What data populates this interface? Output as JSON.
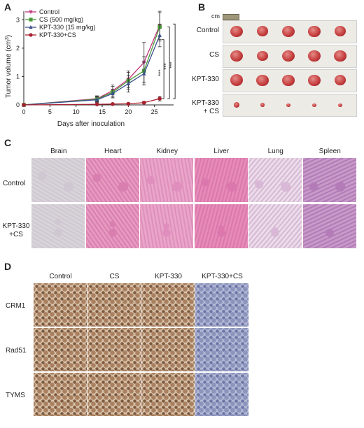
{
  "panels": {
    "a": "A",
    "b": "B",
    "c": "C",
    "d": "D"
  },
  "chart_data": {
    "type": "line",
    "xlabel": "Days after inoculation",
    "ylabel": "Tumor volume (cm³)",
    "ylabel_main": "Tumor volume (cm",
    "ylabel_sup": "3",
    "ylabel_end": ")",
    "xlim": [
      0,
      30
    ],
    "ylim": [
      0,
      3.5
    ],
    "xticks": [
      "0",
      "5",
      "10",
      "15",
      "20",
      "25"
    ],
    "yticks": [
      "0",
      "1",
      "2",
      "3"
    ],
    "x": [
      0,
      14,
      17,
      20,
      23,
      26
    ],
    "series": [
      {
        "name": "Control",
        "color": "#c2347a",
        "marker": "triangle-down",
        "values": [
          0,
          0.22,
          0.5,
          0.9,
          1.5,
          2.8
        ],
        "err": [
          0,
          0.1,
          0.2,
          0.3,
          0.7,
          0.5
        ]
      },
      {
        "name": "CS (500 mg/kg)",
        "color": "#4a9a3a",
        "marker": "square",
        "values": [
          0,
          0.2,
          0.45,
          0.85,
          1.2,
          2.75
        ],
        "err": [
          0,
          0.1,
          0.2,
          0.3,
          0.5,
          0.5
        ]
      },
      {
        "name": "KPT-330 (15 mg/kg)",
        "color": "#3a4e8c",
        "marker": "triangle-up",
        "values": [
          0,
          0.18,
          0.4,
          0.75,
          1.1,
          2.45
        ],
        "err": [
          0,
          0.1,
          0.15,
          0.3,
          0.4,
          0.4
        ]
      },
      {
        "name": "KPT-330+CS",
        "color": "#a8202e",
        "marker": "circle",
        "values": [
          0,
          0.02,
          0.03,
          0.04,
          0.08,
          0.22
        ],
        "err": [
          0,
          0.02,
          0.02,
          0.02,
          0.04,
          0.08
        ]
      }
    ],
    "significance": [
      "***",
      "***",
      "***"
    ]
  },
  "panel_b": {
    "scale_label": "cm",
    "rows": [
      {
        "label": "Control",
        "tumors": [
          1.0,
          0.9,
          1.0,
          0.95,
          0.9
        ]
      },
      {
        "label": "CS",
        "tumors": [
          1.0,
          0.85,
          1.0,
          0.95,
          0.95
        ]
      },
      {
        "label": "KPT-330",
        "tumors": [
          1.05,
          0.95,
          0.95,
          0.95,
          0.9
        ]
      },
      {
        "label_line1": "KPT-330",
        "label_line2": "+ CS",
        "tumors": [
          0.45,
          0.38,
          0.32,
          0.3,
          0.3
        ]
      }
    ]
  },
  "panel_c": {
    "columns": [
      "Brain",
      "Heart",
      "Kidney",
      "Liver",
      "Lung",
      "Spleen"
    ],
    "rows": [
      {
        "label": "Control"
      },
      {
        "label_line1": "KPT-330",
        "label_line2": "+CS"
      }
    ]
  },
  "panel_d": {
    "columns": [
      "Control",
      "CS",
      "KPT-330",
      "KPT-330+CS"
    ],
    "rows": [
      "CRM1",
      "Rad51",
      "TYMS"
    ]
  },
  "colors": {
    "tumor": "#c23a3a",
    "brain": "#d9d4d8",
    "he": "#e6a0c0",
    "ihc_brown": "#a98060",
    "ihc_blue": "#8c94bc"
  }
}
